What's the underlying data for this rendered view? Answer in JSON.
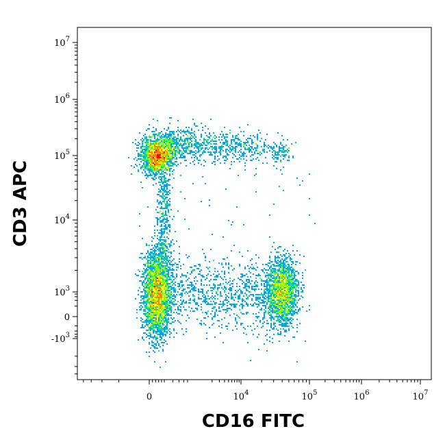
{
  "chart_data": {
    "type": "scatter",
    "style": "density dot plot",
    "xlabel": "CD16 FITC",
    "ylabel": "CD3 APC",
    "x_scale": "biexponential",
    "y_scale": "biexponential",
    "xlim": [
      -1000,
      10000000
    ],
    "ylim": [
      -5000,
      10000000
    ],
    "grid": false,
    "legend": "none",
    "x_ticks": [
      {
        "value": 0,
        "base": "0",
        "exp": ""
      },
      {
        "value": 10000,
        "base": "10",
        "exp": "4"
      },
      {
        "value": 100000,
        "base": "10",
        "exp": "5"
      },
      {
        "value": 1000000,
        "base": "10",
        "exp": "6"
      },
      {
        "value": 10000000,
        "base": "10",
        "exp": "7"
      }
    ],
    "y_ticks": [
      {
        "value": -1000,
        "base": "-10",
        "exp": "3"
      },
      {
        "value": 0,
        "base": "0",
        "exp": ""
      },
      {
        "value": 1000,
        "base": "10",
        "exp": "3"
      },
      {
        "value": 10000,
        "base": "10",
        "exp": "4"
      },
      {
        "value": 100000,
        "base": "10",
        "exp": "5"
      },
      {
        "value": 1000000,
        "base": "10",
        "exp": "6"
      },
      {
        "value": 10000000,
        "base": "10",
        "exp": "7"
      }
    ],
    "populations": [
      {
        "description": "CD3+ CD16-",
        "x_center": 50,
        "y_center": 100000
      },
      {
        "description": "CD3- CD16-",
        "x_center": 50,
        "y_center": 800
      },
      {
        "description": "CD3- CD16+",
        "x_center": 40000,
        "y_center": 1000
      }
    ],
    "density_colors": [
      "#0000cc",
      "#00a0ff",
      "#00e0a0",
      "#80ff00",
      "#ffff00",
      "#ff8000",
      "#ff0000"
    ]
  }
}
